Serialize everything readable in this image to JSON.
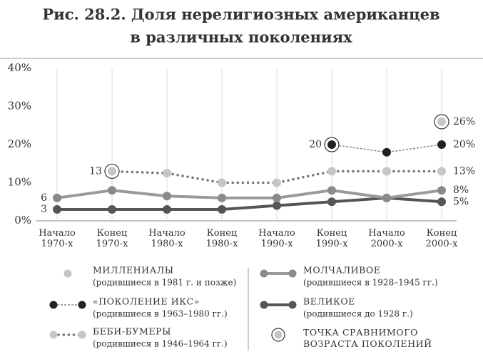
{
  "chart_data": {
    "type": "line",
    "title": [
      "Рис. 28.2. Доля нерелигиозных американцев",
      "в различных поколениях"
    ],
    "categories": [
      "Начало 1970-х",
      "Конец 1970-х",
      "Начало 1980-х",
      "Конец 1980-х",
      "Начало 1990-х",
      "Конец 1990-х",
      "Начало 2000-х",
      "Конец 2000-х"
    ],
    "ylim": [
      0,
      40
    ],
    "yticks": [
      {
        "value": 0,
        "label": "0%"
      },
      {
        "value": 10,
        "label": "10%"
      },
      {
        "value": 20,
        "label": "20%"
      },
      {
        "value": 30,
        "label": "30%"
      },
      {
        "value": 40,
        "label": "40%"
      }
    ],
    "grid": "x",
    "comparable_label": "ТОЧКА СРАВНИМОГО ВОЗРАСТА ПОКОЛЕНИЙ",
    "series": [
      {
        "name": "МИЛЛЕНИАЛЫ",
        "birth": "(родившиеся в 1981 г. и позже)",
        "color": "#c6c6c6",
        "line_color": "#c6c6c6",
        "style": "none",
        "circled": 7,
        "values": [
          null,
          null,
          null,
          null,
          null,
          null,
          null,
          26
        ],
        "value_labels": [
          null,
          null,
          null,
          null,
          null,
          null,
          null,
          "26%"
        ]
      },
      {
        "name": "«ПОКОЛЕНИЕ ИКС»",
        "birth": "(родившиеся в 1963–1980 гг.)",
        "color": "#222222",
        "line_color": "#888888",
        "style": "zigzag",
        "circled": 5,
        "values": [
          null,
          null,
          null,
          null,
          null,
          20,
          18,
          20
        ],
        "value_labels": [
          null,
          null,
          null,
          null,
          null,
          "20",
          null,
          "20%"
        ]
      },
      {
        "name": "БЕБИ-БУМЕРЫ",
        "birth": "(родившиеся в 1946–1964 гг.)",
        "color": "#c6c6c6",
        "line_color": "#777777",
        "style": "dotted",
        "circled": 1,
        "values": [
          null,
          13,
          12.5,
          10,
          10,
          13,
          13,
          13
        ],
        "value_labels": [
          null,
          "13",
          null,
          null,
          null,
          null,
          null,
          "13%"
        ]
      },
      {
        "name": "МОЛЧАЛИВОЕ",
        "birth": "(родившиеся в 1928–1945 гг.)",
        "color": "#8a8a8a",
        "line_color": "#9a9a9a",
        "style": "solid",
        "values": [
          6,
          8,
          6.5,
          6,
          6,
          8,
          6,
          8
        ],
        "value_labels": [
          "6",
          null,
          null,
          null,
          null,
          null,
          null,
          "8%"
        ]
      },
      {
        "name": "ВЕЛИКОЕ",
        "birth": "(родившиеся до 1928 г.)",
        "color": "#555555",
        "line_color": "#555555",
        "style": "solid",
        "values": [
          3,
          3,
          3,
          3,
          4,
          5,
          6,
          5
        ],
        "value_labels": [
          "3",
          null,
          null,
          null,
          null,
          null,
          null,
          "5%"
        ]
      }
    ]
  }
}
